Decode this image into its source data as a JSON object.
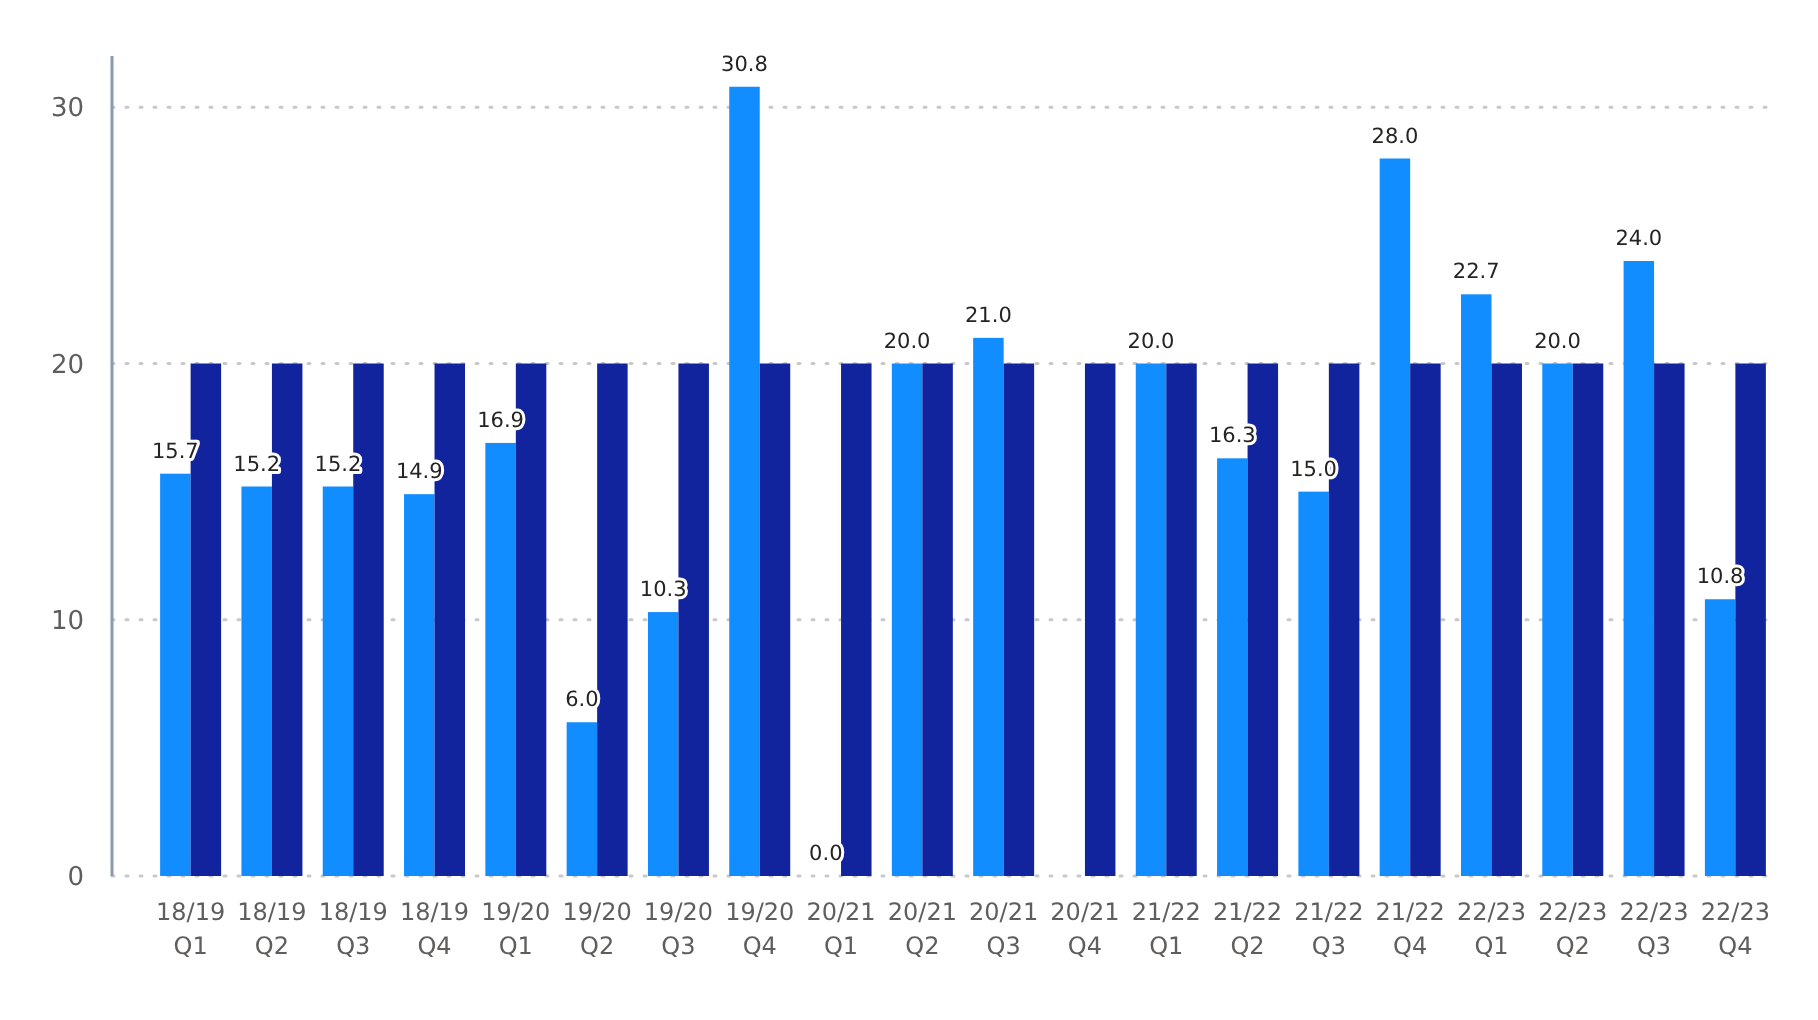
{
  "chart_data": {
    "type": "bar",
    "categories": [
      "18/19\nQ1",
      "18/19\nQ2",
      "18/19\nQ3",
      "18/19\nQ4",
      "19/20\nQ1",
      "19/20\nQ2",
      "19/20\nQ3",
      "19/20\nQ4",
      "20/21\nQ1",
      "20/21\nQ2",
      "20/21\nQ3",
      "20/21\nQ4",
      "21/22\nQ1",
      "21/22\nQ2",
      "21/22\nQ3",
      "21/22\nQ4",
      "22/23\nQ1",
      "22/23\nQ2",
      "22/23\nQ3",
      "22/23\nQ4"
    ],
    "series": [
      {
        "color": "#118dff",
        "values": [
          15.7,
          15.2,
          15.2,
          14.9,
          16.9,
          6.0,
          10.3,
          30.8,
          0.0,
          20.0,
          21.0,
          null,
          20.0,
          16.3,
          15.0,
          28.0,
          22.7,
          20.0,
          24.0,
          10.8
        ],
        "value_labels": [
          "15.7",
          "15.2",
          "15.2",
          "14.9",
          "16.9",
          "6.0",
          "10.3",
          "30.8",
          "0.0",
          "20.0",
          "21.0",
          null,
          "20.0",
          "16.3",
          "15.0",
          "28.0",
          "22.7",
          "20.0",
          "24.0",
          "10.8"
        ]
      },
      {
        "color": "#12239e",
        "values": [
          20,
          20,
          20,
          20,
          20,
          20,
          20,
          20,
          20,
          20,
          20,
          20,
          20,
          20,
          20,
          20,
          20,
          20,
          20,
          20
        ]
      }
    ],
    "ylim": [
      0,
      32
    ],
    "yticks": [
      0,
      10,
      20,
      30
    ],
    "grid": "y"
  }
}
